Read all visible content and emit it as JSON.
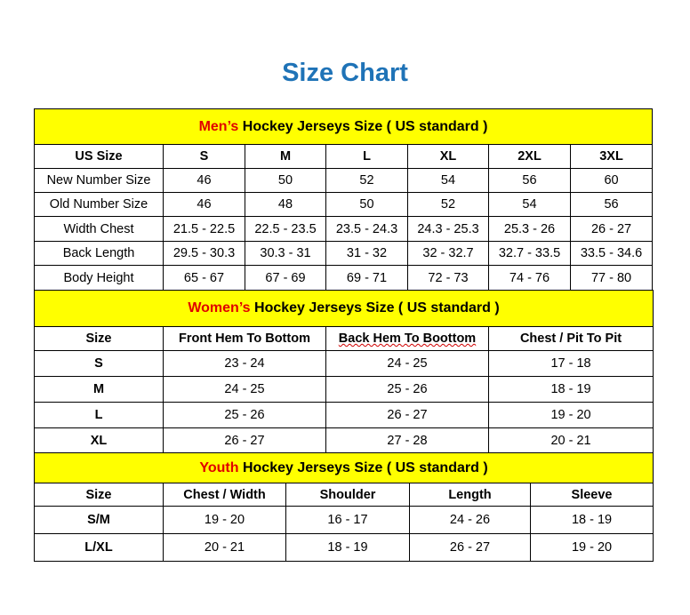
{
  "title": "Size Chart",
  "colors": {
    "title": "#1f73b7",
    "section_bg": "#ffff00",
    "section_prefix": "#e00000"
  },
  "men": {
    "prefix": "Men’s",
    "heading": " Hockey Jerseys Size ( US standard )",
    "columns": [
      "US Size",
      "S",
      "M",
      "L",
      "XL",
      "2XL",
      "3XL"
    ],
    "rows": [
      [
        "New Number Size",
        "46",
        "50",
        "52",
        "54",
        "56",
        "60"
      ],
      [
        "Old Number Size",
        "46",
        "48",
        "50",
        "52",
        "54",
        "56"
      ],
      [
        "Width Chest",
        "21.5 - 22.5",
        "22.5 - 23.5",
        "23.5 - 24.3",
        "24.3 - 25.3",
        "25.3 - 26",
        "26 - 27"
      ],
      [
        "Back Length",
        "29.5 - 30.3",
        "30.3 - 31",
        "31 - 32",
        "32 - 32.7",
        "32.7 - 33.5",
        "33.5 - 34.6"
      ],
      [
        "Body Height",
        "65 - 67",
        "67 - 69",
        "69 - 71",
        "72 - 73",
        "74 - 76",
        "77 - 80"
      ]
    ]
  },
  "women": {
    "prefix": "Women’s",
    "heading": " Hockey Jerseys Size ( US standard )",
    "columns": [
      "Size",
      "Front Hem To Bottom",
      "Back Hem To Boottom",
      "Chest / Pit To Pit"
    ],
    "rows": [
      [
        "S",
        "23 - 24",
        "24 - 25",
        "17 - 18"
      ],
      [
        "M",
        "24 - 25",
        "25 - 26",
        "18 - 19"
      ],
      [
        "L",
        "25 - 26",
        "26 - 27",
        "19 - 20"
      ],
      [
        "XL",
        "26 - 27",
        "27 - 28",
        "20 - 21"
      ]
    ]
  },
  "youth": {
    "prefix": "Youth",
    "heading": " Hockey Jerseys Size ( US standard )",
    "columns": [
      "Size",
      "Chest / Width",
      "Shoulder",
      "Length",
      "Sleeve"
    ],
    "rows": [
      [
        "S/M",
        "19 - 20",
        "16 - 17",
        "24 - 26",
        "18 - 19"
      ],
      [
        "L/XL",
        "20 - 21",
        "18 - 19",
        "26 - 27",
        "19 - 20"
      ]
    ]
  }
}
